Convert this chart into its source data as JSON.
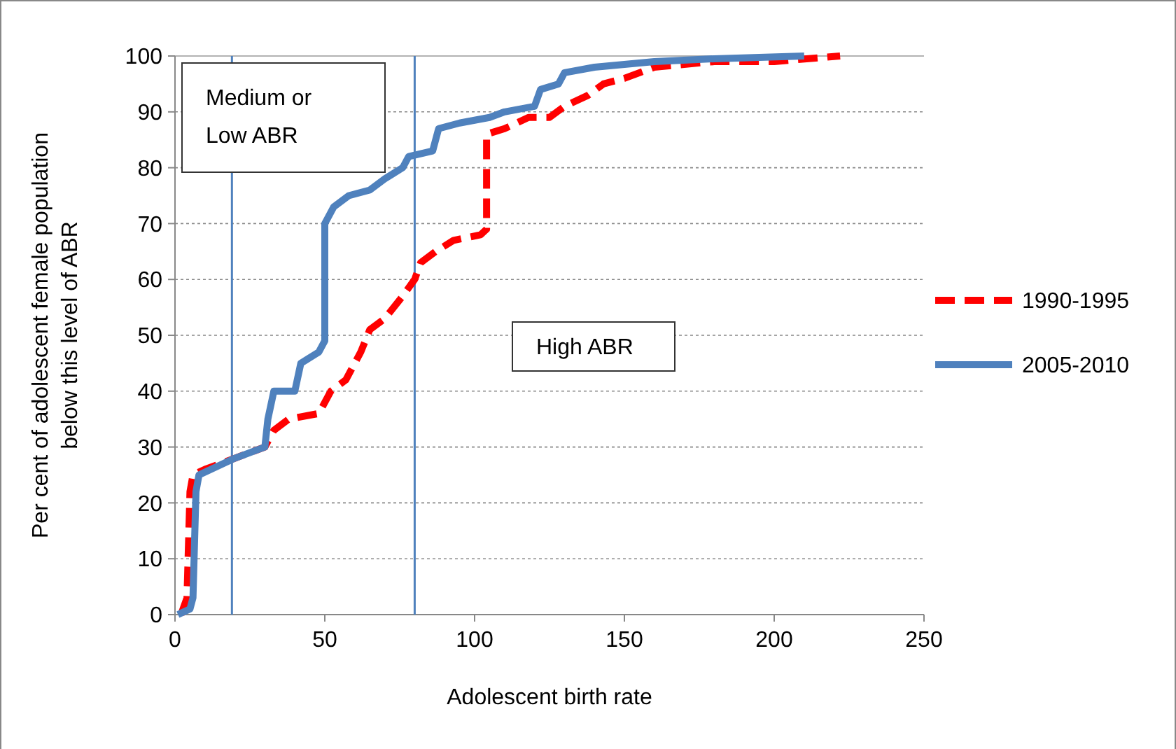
{
  "chart_data": {
    "type": "line",
    "xlabel": "Adolescent birth rate",
    "ylabel": "Per cent of adolescent female population below this level of ABR",
    "xlim": [
      0,
      250
    ],
    "xticks": [
      0,
      50,
      100,
      150,
      200,
      250
    ],
    "ylim": [
      0,
      100
    ],
    "yticks": [
      0,
      10,
      20,
      30,
      40,
      50,
      60,
      70,
      80,
      90,
      100
    ],
    "grid": "y",
    "legend": "right",
    "ref_lines": [
      {
        "axis": "x",
        "value": 19,
        "color": "#4f81bd"
      },
      {
        "axis": "x",
        "value": 80,
        "color": "#4f81bd"
      }
    ],
    "annotations": [
      "Medium or Low ABR",
      "High ABR"
    ],
    "series": [
      {
        "name": "1990-1995",
        "color": "#ff0000",
        "line_style": "dashed",
        "x": [
          2,
          4,
          5,
          6,
          10,
          15,
          20,
          25,
          30,
          33,
          38,
          48,
          52,
          57,
          62,
          65,
          70,
          76,
          80,
          82,
          87,
          93,
          102,
          104,
          104,
          110,
          118,
          125,
          130,
          138,
          143,
          150,
          160,
          180,
          200,
          222
        ],
        "values": [
          0,
          3,
          22,
          25,
          26,
          27,
          28,
          29,
          30,
          33,
          35,
          36,
          40,
          42,
          47,
          51,
          53,
          57,
          60,
          63,
          65,
          67,
          68,
          69,
          86,
          87,
          89,
          89,
          91,
          93,
          95,
          96,
          98,
          99,
          99,
          100
        ]
      },
      {
        "name": "2005-2010",
        "color": "#4f81bd",
        "line_style": "solid",
        "x": [
          1,
          5,
          6,
          7,
          8,
          12,
          16,
          20,
          25,
          30,
          31,
          33,
          40,
          42,
          48,
          50,
          50,
          53,
          58,
          65,
          70,
          76,
          78,
          86,
          88,
          95,
          105,
          110,
          120,
          122,
          128,
          130,
          140,
          160,
          180,
          210
        ],
        "values": [
          0,
          1,
          3,
          22,
          25,
          26,
          27,
          28,
          29,
          30,
          35,
          40,
          40,
          45,
          47,
          49,
          70,
          73,
          75,
          76,
          78,
          80,
          82,
          83,
          87,
          88,
          89,
          90,
          91,
          94,
          95,
          97,
          98,
          99,
          99.5,
          100
        ]
      }
    ]
  }
}
